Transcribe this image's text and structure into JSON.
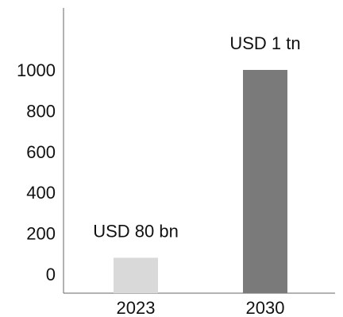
{
  "chart_data": {
    "type": "bar",
    "categories": [
      "2023",
      "2030"
    ],
    "values": [
      80,
      1000
    ],
    "data_labels": [
      "USD 80 bn",
      "USD 1 tn"
    ],
    "bar_colors": [
      "#d9d9d9",
      "#7a7a7a"
    ],
    "y_ticks": [
      0,
      200,
      400,
      600,
      800,
      1000
    ],
    "ylim": [
      0,
      1000
    ],
    "title": "",
    "xlabel": "",
    "ylabel": "",
    "grid": false,
    "legend": "none"
  }
}
